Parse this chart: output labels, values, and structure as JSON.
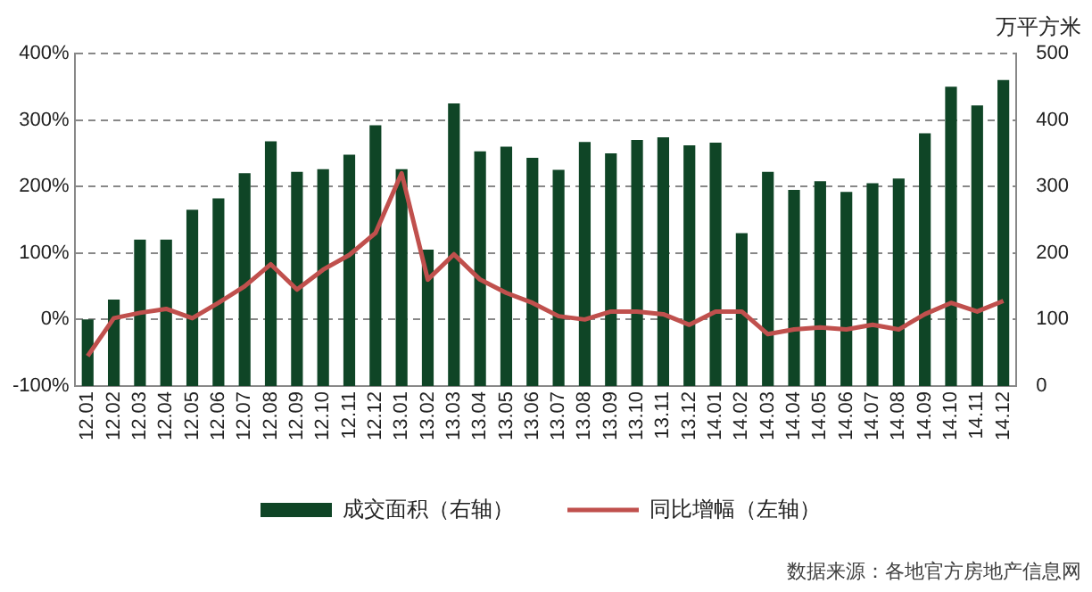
{
  "chart_data": {
    "type": "bar",
    "y2label": "万平方米",
    "annotations": [
      "数据来源：各地官方房地产信息网"
    ],
    "categories": [
      "12.01",
      "12.02",
      "12.03",
      "12.04",
      "12.05",
      "12.06",
      "12.07",
      "12.08",
      "12.09",
      "12.10",
      "12.11",
      "12.12",
      "13.01",
      "13.02",
      "13.03",
      "13.04",
      "13.05",
      "13.06",
      "13.07",
      "13.08",
      "13.09",
      "13.10",
      "13.11",
      "13.12",
      "14.01",
      "14.02",
      "14.03",
      "14.04",
      "14.05",
      "14.06",
      "14.07",
      "14.08",
      "14.09",
      "14.10",
      "14.11",
      "14.12"
    ],
    "series": [
      {
        "name": "成交面积（右轴）",
        "axis": "y2",
        "color": "#0f4526",
        "values": [
          100,
          130,
          220,
          220,
          265,
          282,
          320,
          368,
          322,
          326,
          348,
          392,
          326,
          205,
          425,
          353,
          360,
          343,
          325,
          367,
          350,
          370,
          374,
          362,
          366,
          230,
          322,
          295,
          308,
          292,
          305,
          312,
          380,
          450,
          422,
          460
        ]
      },
      {
        "name": "同比增幅（左轴）",
        "type": "line",
        "color": "#c0504d",
        "values": [
          -55,
          2,
          10,
          16,
          2,
          25,
          50,
          83,
          45,
          75,
          97,
          130,
          220,
          60,
          98,
          60,
          40,
          25,
          5,
          0,
          12,
          12,
          8,
          -8,
          12,
          12,
          -22,
          -15,
          -12,
          -15,
          -8,
          -15,
          8,
          25,
          12,
          28
        ]
      }
    ],
    "ylim": [
      -100,
      400
    ],
    "yticks": [
      {
        "value": -100,
        "label": "-100%"
      },
      {
        "value": 0,
        "label": "0%"
      },
      {
        "value": 100,
        "label": "100%"
      },
      {
        "value": 200,
        "label": "200%"
      },
      {
        "value": 300,
        "label": "300%"
      },
      {
        "value": 400,
        "label": "400%"
      }
    ],
    "y2lim": [
      0,
      500
    ],
    "y2ticks": [
      0,
      100,
      200,
      300,
      400,
      500
    ],
    "grid": "y",
    "legend": "bottom",
    "line_style": "solid",
    "marker": "none"
  }
}
